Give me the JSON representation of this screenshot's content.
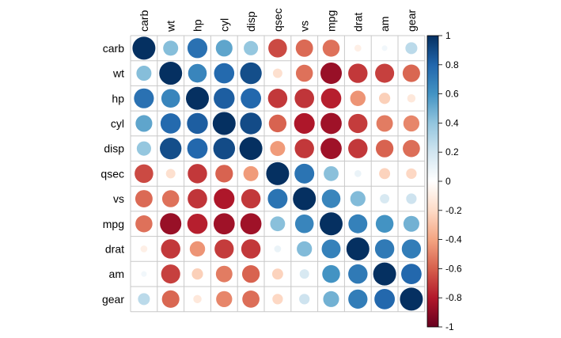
{
  "chart_data": {
    "type": "heatmap",
    "style": "correlation-circles",
    "title": "",
    "variables": [
      "carb",
      "wt",
      "hp",
      "cyl",
      "disp",
      "qsec",
      "vs",
      "mpg",
      "drat",
      "am",
      "gear"
    ],
    "matrix": [
      [
        1.0,
        0.43,
        0.75,
        0.53,
        0.39,
        -0.66,
        -0.57,
        -0.55,
        -0.09,
        0.06,
        0.27
      ],
      [
        0.43,
        1.0,
        0.66,
        0.78,
        0.89,
        -0.17,
        -0.55,
        -0.87,
        -0.71,
        -0.69,
        -0.58
      ],
      [
        0.75,
        0.66,
        1.0,
        0.83,
        0.79,
        -0.71,
        -0.72,
        -0.78,
        -0.45,
        -0.24,
        -0.13
      ],
      [
        0.53,
        0.78,
        0.83,
        1.0,
        0.9,
        -0.59,
        -0.81,
        -0.85,
        -0.7,
        -0.52,
        -0.49
      ],
      [
        0.39,
        0.89,
        0.79,
        0.9,
        1.0,
        -0.43,
        -0.71,
        -0.85,
        -0.71,
        -0.59,
        -0.56
      ],
      [
        -0.66,
        -0.17,
        -0.71,
        -0.59,
        -0.43,
        1.0,
        0.74,
        0.42,
        0.09,
        -0.23,
        -0.21
      ],
      [
        -0.57,
        -0.55,
        -0.72,
        -0.81,
        -0.71,
        0.74,
        1.0,
        0.66,
        0.44,
        0.17,
        0.21
      ],
      [
        -0.55,
        -0.87,
        -0.78,
        -0.85,
        -0.85,
        0.42,
        0.66,
        1.0,
        0.68,
        0.6,
        0.48
      ],
      [
        -0.09,
        -0.71,
        -0.45,
        -0.7,
        -0.71,
        0.09,
        0.44,
        0.68,
        1.0,
        0.71,
        0.7
      ],
      [
        0.06,
        -0.69,
        -0.24,
        -0.52,
        -0.59,
        -0.23,
        0.17,
        0.6,
        0.71,
        1.0,
        0.79
      ],
      [
        0.27,
        -0.58,
        -0.13,
        -0.49,
        -0.56,
        -0.21,
        0.21,
        0.48,
        0.7,
        0.79,
        1.0
      ]
    ],
    "colorbar": {
      "range": [
        -1,
        1
      ],
      "ticks": [
        "1",
        "0.8",
        "0.6",
        "0.4",
        "0.2",
        "0",
        "-0.2",
        "-0.4",
        "-0.6",
        "-0.8",
        "-1"
      ],
      "tick_values": [
        1,
        0.8,
        0.6,
        0.4,
        0.2,
        0,
        -0.2,
        -0.4,
        -0.6,
        -0.8,
        -1
      ]
    },
    "palette": [
      "#67001F",
      "#B2182B",
      "#D6604D",
      "#F4A582",
      "#FDDBC7",
      "#FFFFFF",
      "#D1E5F0",
      "#92C5DE",
      "#4393C3",
      "#2166AC",
      "#053061"
    ],
    "grid_color": "#C8C8C8"
  }
}
